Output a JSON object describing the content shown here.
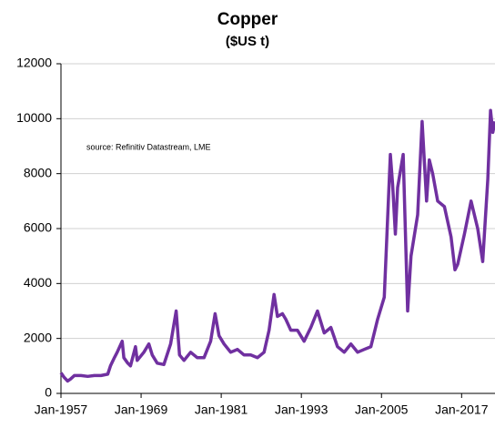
{
  "chart_data": {
    "type": "line",
    "title": "Copper",
    "subtitle": "($US t)",
    "annotation": "source:  Refinitiv Datastream,  LME",
    "x": [
      "1957-01",
      "1957-06",
      "1958-01",
      "1958-06",
      "1959-01",
      "1960-01",
      "1961-01",
      "1962-01",
      "1963-01",
      "1964-01",
      "1964-06",
      "1965-01",
      "1965-06",
      "1966-03",
      "1966-06",
      "1967-01",
      "1967-06",
      "1968-03",
      "1968-06",
      "1969-06",
      "1970-03",
      "1970-09",
      "1971-06",
      "1972-06",
      "1973-06",
      "1974-04",
      "1974-10",
      "1975-06",
      "1976-06",
      "1977-06",
      "1978-06",
      "1979-06",
      "1980-02",
      "1980-09",
      "1981-06",
      "1982-06",
      "1983-06",
      "1984-06",
      "1985-06",
      "1986-06",
      "1987-06",
      "1988-03",
      "1988-12",
      "1989-06",
      "1990-03",
      "1990-09",
      "1991-06",
      "1992-06",
      "1993-06",
      "1994-06",
      "1995-06",
      "1996-06",
      "1997-06",
      "1998-06",
      "1999-06",
      "2000-06",
      "2001-06",
      "2002-06",
      "2003-06",
      "2004-06",
      "2005-06",
      "2006-05",
      "2006-09",
      "2007-02",
      "2007-06",
      "2008-04",
      "2008-12",
      "2009-06",
      "2010-06",
      "2011-02",
      "2011-10",
      "2012-03",
      "2012-09",
      "2013-06",
      "2014-06",
      "2015-06",
      "2016-01",
      "2016-06",
      "2017-06",
      "2018-06",
      "2019-06",
      "2020-03",
      "2020-12",
      "2021-05",
      "2021-09",
      "2022-01"
    ],
    "series": [
      {
        "name": "Copper",
        "color": "#7030a0",
        "values": [
          750,
          600,
          450,
          520,
          650,
          650,
          620,
          650,
          650,
          700,
          1000,
          1300,
          1500,
          1900,
          1300,
          1100,
          1000,
          1700,
          1200,
          1500,
          1800,
          1400,
          1100,
          1050,
          1800,
          3000,
          1400,
          1200,
          1500,
          1300,
          1300,
          1900,
          2900,
          2100,
          1800,
          1500,
          1600,
          1400,
          1400,
          1300,
          1500,
          2300,
          3600,
          2800,
          2900,
          2700,
          2300,
          2300,
          1900,
          2400,
          3000,
          2200,
          2400,
          1700,
          1500,
          1800,
          1500,
          1600,
          1700,
          2700,
          3500,
          8700,
          7600,
          5800,
          7500,
          8700,
          3000,
          5000,
          6500,
          9900,
          7000,
          8500,
          8000,
          7000,
          6800,
          5700,
          4500,
          4700,
          5800,
          7000,
          6000,
          4800,
          7800,
          10300,
          9500,
          9900
        ]
      }
    ],
    "xlim": [
      "1957-01",
      "2022-01"
    ],
    "xticks": [
      {
        "value": "1957-01",
        "label": "Jan-1957"
      },
      {
        "value": "1969-01",
        "label": "Jan-1969"
      },
      {
        "value": "1981-01",
        "label": "Jan-1981"
      },
      {
        "value": "1993-01",
        "label": "Jan-1993"
      },
      {
        "value": "2005-01",
        "label": "Jan-2005"
      },
      {
        "value": "2017-01",
        "label": "Jan-2017"
      }
    ],
    "ylim": [
      0,
      12000
    ],
    "yticks": [
      0,
      2000,
      4000,
      6000,
      8000,
      10000,
      12000
    ],
    "grid": true
  }
}
